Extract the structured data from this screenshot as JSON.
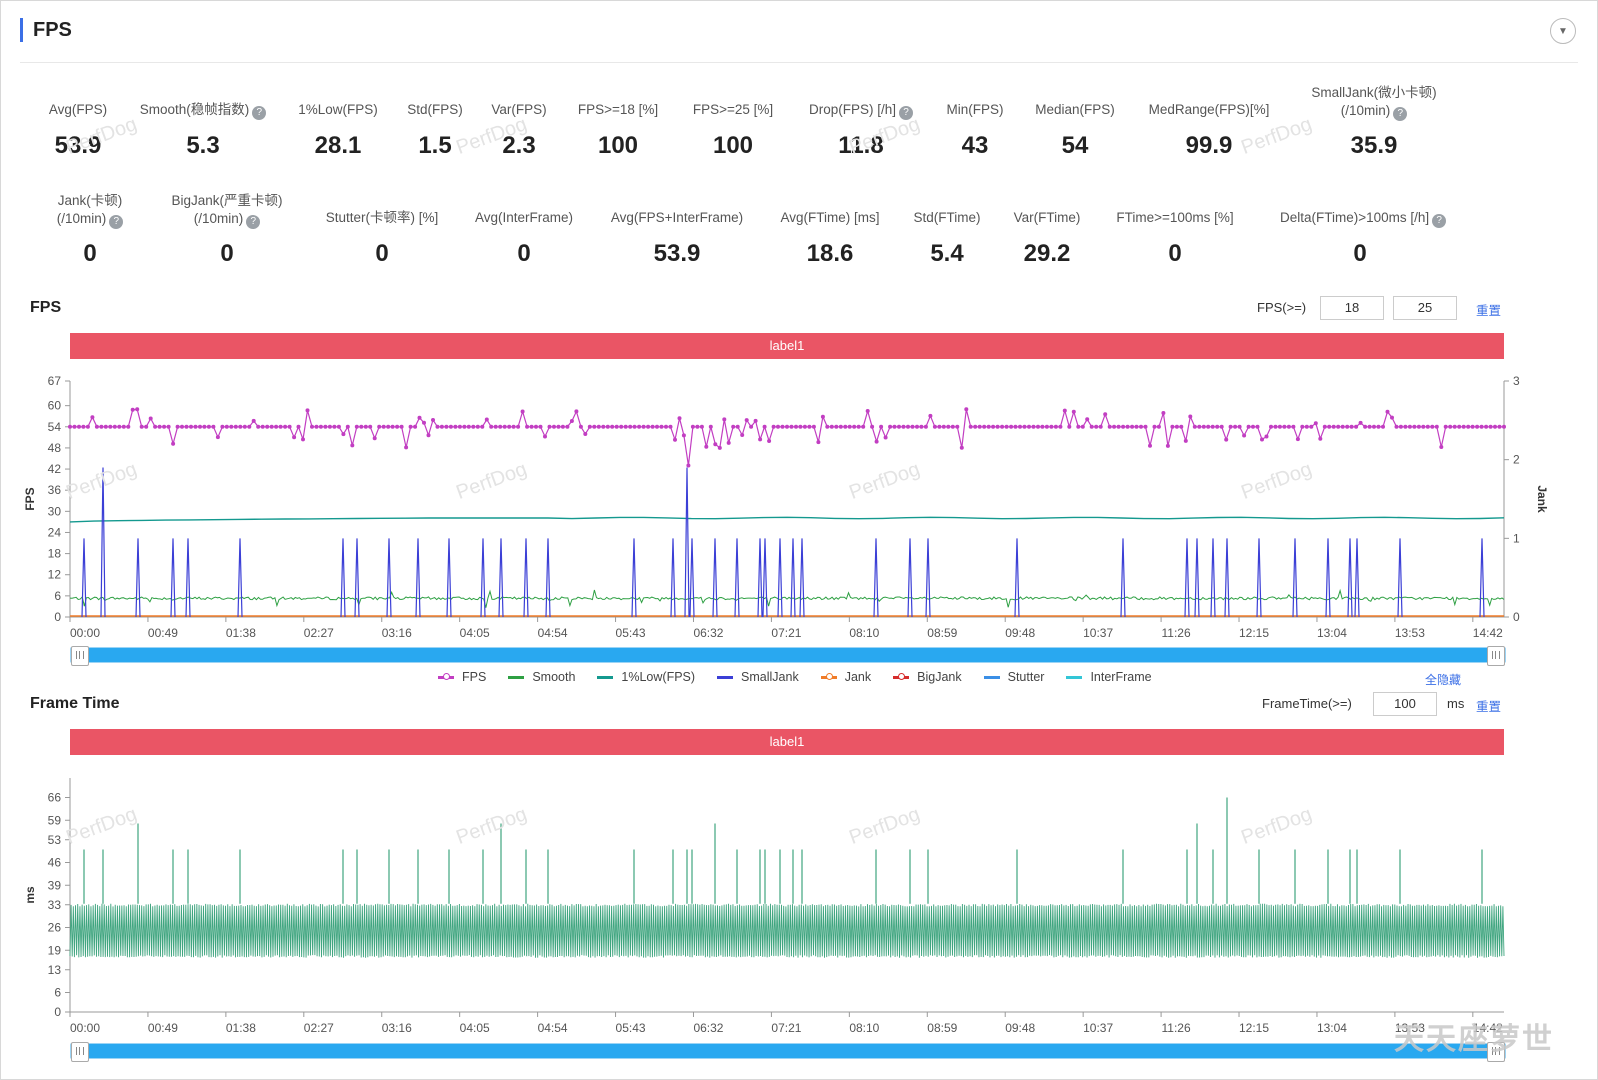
{
  "header": {
    "title": "FPS"
  },
  "metrics": [
    {
      "label": "Avg(FPS)",
      "value": "53.9",
      "help": false
    },
    {
      "label": "Smooth(稳帧指数)",
      "value": "5.3",
      "help": true
    },
    {
      "label": "1%Low(FPS)",
      "value": "28.1",
      "help": false
    },
    {
      "label": "Std(FPS)",
      "value": "1.5",
      "help": false
    },
    {
      "label": "Var(FPS)",
      "value": "2.3",
      "help": false
    },
    {
      "label": "FPS>=18 [%]",
      "value": "100",
      "help": false
    },
    {
      "label": "FPS>=25 [%]",
      "value": "100",
      "help": false
    },
    {
      "label": "Drop(FPS) [/h]",
      "value": "11.8",
      "help": true
    },
    {
      "label": "Min(FPS)",
      "value": "43",
      "help": false
    },
    {
      "label": "Median(FPS)",
      "value": "54",
      "help": false
    },
    {
      "label": "MedRange(FPS)[%]",
      "value": "99.9",
      "help": false
    },
    {
      "label": "SmallJank(微小卡顿)",
      "label2": "(/10min)",
      "value": "35.9",
      "help": true
    },
    {
      "label": "Jank(卡顿)",
      "label2": "(/10min)",
      "value": "0",
      "help": true
    },
    {
      "label": "BigJank(严重卡顿)",
      "label2": "(/10min)",
      "value": "0",
      "help": true
    },
    {
      "label": "Stutter(卡顿率) [%]",
      "value": "0",
      "help": false
    },
    {
      "label": "Avg(InterFrame)",
      "value": "0",
      "help": false
    },
    {
      "label": "Avg(FPS+InterFrame)",
      "value": "53.9",
      "help": false
    },
    {
      "label": "Avg(FTime) [ms]",
      "value": "18.6",
      "help": false
    },
    {
      "label": "Std(FTime)",
      "value": "5.4",
      "help": false
    },
    {
      "label": "Var(FTime)",
      "value": "29.2",
      "help": false
    },
    {
      "label": "FTime>=100ms [%]",
      "value": "0",
      "help": false
    },
    {
      "label": "Delta(FTime)>100ms [/h]",
      "value": "0",
      "help": true
    }
  ],
  "fps_section": {
    "title": "FPS",
    "threshold_label": "FPS(>=)",
    "threshold1": "18",
    "threshold2": "25",
    "reset": "重置",
    "band_label": "label1",
    "hide_all": "全隐藏"
  },
  "frametime_section": {
    "title": "Frame Time",
    "threshold_label": "FrameTime(>=)",
    "threshold": "100",
    "unit": "ms",
    "reset": "重置",
    "band_label": "label1"
  },
  "legend": [
    {
      "name": "FPS",
      "color": "#c23ec2",
      "marker": true
    },
    {
      "name": "Smooth",
      "color": "#2ea043",
      "marker": false
    },
    {
      "name": "1%Low(FPS)",
      "color": "#14998f",
      "marker": false
    },
    {
      "name": "SmallJank",
      "color": "#3b3fd6",
      "marker": false
    },
    {
      "name": "Jank",
      "color": "#f07c28",
      "marker": true
    },
    {
      "name": "BigJank",
      "color": "#d62d2d",
      "marker": true
    },
    {
      "name": "Stutter",
      "color": "#3b8fe6",
      "marker": false
    },
    {
      "name": "InterFrame",
      "color": "#33c6d6",
      "marker": false
    }
  ],
  "watermark_text": "PerfDog",
  "corner_mark": "天天座萝世",
  "chart_data": [
    {
      "type": "line",
      "title": "FPS",
      "ylabel": "FPS",
      "y2label": "Jank",
      "x": [
        "00:00",
        "00:49",
        "01:38",
        "02:27",
        "03:16",
        "04:05",
        "04:54",
        "05:43",
        "06:32",
        "07:21",
        "08:10",
        "08:59",
        "09:48",
        "10:37",
        "11:26",
        "12:15",
        "13:04",
        "13:53",
        "14:42"
      ],
      "yticks": [
        0,
        6,
        12,
        18,
        24,
        30,
        36,
        42,
        48,
        54,
        60,
        67
      ],
      "y2ticks": [
        0,
        1,
        2,
        3
      ],
      "ylim": [
        0,
        67
      ],
      "y2lim": [
        0,
        3
      ],
      "series": [
        {
          "name": "FPS",
          "baseline": 54,
          "min": 43,
          "max": 60
        },
        {
          "name": "Smooth",
          "baseline": 5.3
        },
        {
          "name": "1%Low(FPS)",
          "start": 27,
          "end": 28.1
        },
        {
          "name": "SmallJank",
          "axis": "right",
          "spike_value": 1
        },
        {
          "name": "Jank",
          "values": 0
        },
        {
          "name": "BigJank",
          "values": 0
        }
      ]
    },
    {
      "type": "line",
      "title": "Frame Time",
      "ylabel": "ms",
      "x": [
        "00:00",
        "00:49",
        "01:38",
        "02:27",
        "03:16",
        "04:05",
        "04:54",
        "05:43",
        "06:32",
        "07:21",
        "08:10",
        "08:59",
        "09:48",
        "10:37",
        "11:26",
        "12:15",
        "13:04",
        "13:53",
        "14:42"
      ],
      "yticks": [
        0,
        6,
        13,
        19,
        26,
        33,
        39,
        46,
        53,
        59,
        66
      ],
      "ylim": [
        0,
        72
      ],
      "series": [
        {
          "name": "FrameTime",
          "low": 16.7,
          "high": 33.3,
          "spike_value": 50,
          "max": 66
        }
      ]
    }
  ]
}
